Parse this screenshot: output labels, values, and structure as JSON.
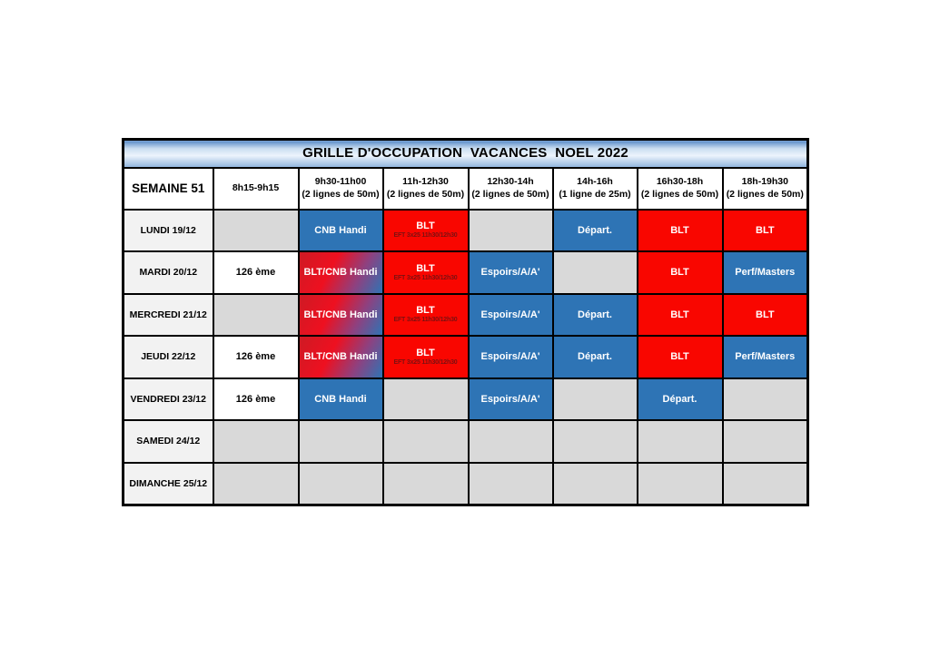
{
  "title": "GRILLE D'OCCUPATION  VACANCES  NOEL 2022",
  "header": {
    "week": "SEMAINE 51",
    "slots": [
      {
        "time": "8h15-9h15",
        "detail": ""
      },
      {
        "time": "9h30-11h00",
        "detail": "(2 lignes de 50m)"
      },
      {
        "time": "11h-12h30",
        "detail": "(2 lignes de 50m)"
      },
      {
        "time": "12h30-14h",
        "detail": "(2 lignes de 50m)"
      },
      {
        "time": "14h-16h",
        "detail": "(1 ligne de 25m)"
      },
      {
        "time": "16h30-18h",
        "detail": "(2 lignes de 50m)"
      },
      {
        "time": "18h-19h30",
        "detail": "(2 lignes de 50m)"
      }
    ]
  },
  "rows": [
    {
      "day": "LUNDI 19/12",
      "cells": [
        {
          "text": "",
          "style": "empty"
        },
        {
          "text": "CNB Handi",
          "style": "blue"
        },
        {
          "text": "BLT",
          "sub": "EFT 3x25 11h30/12h30",
          "style": "redsub"
        },
        {
          "text": "",
          "style": "empty"
        },
        {
          "text": "Départ.",
          "style": "blue"
        },
        {
          "text": "BLT",
          "style": "red"
        },
        {
          "text": "BLT",
          "style": "red"
        }
      ]
    },
    {
      "day": "MARDI 20/12",
      "cells": [
        {
          "text": "126 ème",
          "style": "white"
        },
        {
          "text": "BLT/CNB Handi",
          "style": "gradient"
        },
        {
          "text": "BLT",
          "sub": "EFT 3x25 11h30/12h30",
          "style": "redsub"
        },
        {
          "text": "Espoirs/A/A'",
          "style": "blue"
        },
        {
          "text": "",
          "style": "empty"
        },
        {
          "text": "BLT",
          "style": "red"
        },
        {
          "text": "Perf/Masters",
          "style": "blue"
        }
      ]
    },
    {
      "day": "MERCREDI 21/12",
      "cells": [
        {
          "text": "",
          "style": "empty"
        },
        {
          "text": "BLT/CNB Handi",
          "style": "gradient"
        },
        {
          "text": "BLT",
          "sub": "EFT 3x25 11h30/12h30",
          "style": "redsub"
        },
        {
          "text": "Espoirs/A/A'",
          "style": "blue"
        },
        {
          "text": "Départ.",
          "style": "blue"
        },
        {
          "text": "BLT",
          "style": "red"
        },
        {
          "text": "BLT",
          "style": "red"
        }
      ]
    },
    {
      "day": "JEUDI 22/12",
      "cells": [
        {
          "text": "126 ème",
          "style": "white"
        },
        {
          "text": "BLT/CNB Handi",
          "style": "gradient"
        },
        {
          "text": "BLT",
          "sub": "EFT 3x25 11h30/12h30",
          "style": "redsub"
        },
        {
          "text": "Espoirs/A/A'",
          "style": "blue"
        },
        {
          "text": "Départ.",
          "style": "blue"
        },
        {
          "text": "BLT",
          "style": "red"
        },
        {
          "text": "Perf/Masters",
          "style": "blue"
        }
      ]
    },
    {
      "day": "VENDREDI 23/12",
      "cells": [
        {
          "text": "126 ème",
          "style": "white"
        },
        {
          "text": "CNB Handi",
          "style": "blue"
        },
        {
          "text": "",
          "style": "empty"
        },
        {
          "text": "Espoirs/A/A'",
          "style": "blue"
        },
        {
          "text": "",
          "style": "empty"
        },
        {
          "text": "Départ.",
          "style": "blue"
        },
        {
          "text": "",
          "style": "empty"
        }
      ]
    },
    {
      "day": "SAMEDI 24/12",
      "cells": [
        {
          "text": "",
          "style": "empty"
        },
        {
          "text": "",
          "style": "empty"
        },
        {
          "text": "",
          "style": "empty"
        },
        {
          "text": "",
          "style": "empty"
        },
        {
          "text": "",
          "style": "empty"
        },
        {
          "text": "",
          "style": "empty"
        },
        {
          "text": "",
          "style": "empty"
        }
      ]
    },
    {
      "day": "DIMANCHE 25/12",
      "cells": [
        {
          "text": "",
          "style": "empty"
        },
        {
          "text": "",
          "style": "empty"
        },
        {
          "text": "",
          "style": "empty"
        },
        {
          "text": "",
          "style": "empty"
        },
        {
          "text": "",
          "style": "empty"
        },
        {
          "text": "",
          "style": "empty"
        },
        {
          "text": "",
          "style": "empty"
        }
      ]
    }
  ],
  "colors": {
    "accent_blue": "#2E74B5",
    "accent_red": "#F90600",
    "sub_text_red": "#7B1111",
    "empty_gray": "#D9D9D9",
    "day_gray": "#F2F2F2",
    "border_black": "#000000",
    "title_gradient": [
      "#5A8CC8",
      "#C9DDF1",
      "#EDF4FC",
      "#8FB4DE"
    ],
    "mixed_gradient": [
      "#CE1A24",
      "#EE1020",
      "#8E4180",
      "#2E74B5"
    ]
  }
}
